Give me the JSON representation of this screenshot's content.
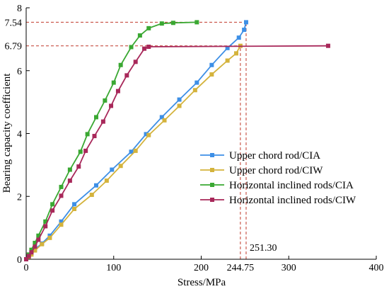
{
  "chart_data": {
    "type": "line",
    "xlabel": "Stress/MPa",
    "ylabel": "Bearing capacity coefficient",
    "xlim": [
      0,
      400
    ],
    "ylim": [
      0,
      8
    ],
    "x_ticks": [
      0,
      100,
      200,
      300,
      400
    ],
    "y_ticks": [
      0,
      2,
      4,
      6,
      8
    ],
    "x_tick_labels": [
      "0",
      "100",
      "200",
      "300",
      "400"
    ],
    "y_tick_labels": [
      "0",
      "2",
      "4",
      "6",
      "8"
    ],
    "legend_position": "right",
    "series": [
      {
        "name": "Upper chord rod/CIA",
        "color": "#3d8fe6",
        "marker": "square",
        "points": [
          [
            0,
            0
          ],
          [
            3,
            0.1
          ],
          [
            6,
            0.2
          ],
          [
            10,
            0.32
          ],
          [
            18,
            0.5
          ],
          [
            27,
            0.75
          ],
          [
            40,
            1.2
          ],
          [
            55,
            1.75
          ],
          [
            80,
            2.35
          ],
          [
            98,
            2.85
          ],
          [
            120,
            3.42
          ],
          [
            137,
            3.98
          ],
          [
            155,
            4.52
          ],
          [
            175,
            5.08
          ],
          [
            195,
            5.62
          ],
          [
            212,
            6.18
          ],
          [
            230,
            6.72
          ],
          [
            243,
            7.05
          ],
          [
            249,
            7.3
          ],
          [
            251.3,
            7.54
          ]
        ]
      },
      {
        "name": "Upper chord rod/CIW",
        "color": "#d4b33c",
        "marker": "square",
        "points": [
          [
            0,
            0
          ],
          [
            3,
            0.08
          ],
          [
            6,
            0.15
          ],
          [
            10,
            0.28
          ],
          [
            18,
            0.48
          ],
          [
            27,
            0.68
          ],
          [
            40,
            1.1
          ],
          [
            55,
            1.6
          ],
          [
            75,
            2.05
          ],
          [
            92,
            2.5
          ],
          [
            108,
            2.97
          ],
          [
            125,
            3.45
          ],
          [
            140,
            3.95
          ],
          [
            158,
            4.42
          ],
          [
            175,
            4.88
          ],
          [
            193,
            5.38
          ],
          [
            212,
            5.88
          ],
          [
            230,
            6.32
          ],
          [
            240,
            6.55
          ],
          [
            244.75,
            6.79
          ]
        ]
      },
      {
        "name": "Horizontal inclined rods/CIA",
        "color": "#3aa832",
        "marker": "square",
        "points": [
          [
            0,
            0
          ],
          [
            3,
            0.15
          ],
          [
            6,
            0.3
          ],
          [
            10,
            0.52
          ],
          [
            14,
            0.75
          ],
          [
            22,
            1.2
          ],
          [
            30,
            1.75
          ],
          [
            40,
            2.3
          ],
          [
            50,
            2.85
          ],
          [
            62,
            3.42
          ],
          [
            70,
            3.98
          ],
          [
            80,
            4.52
          ],
          [
            90,
            5.05
          ],
          [
            100,
            5.62
          ],
          [
            108,
            6.18
          ],
          [
            120,
            6.75
          ],
          [
            130,
            7.12
          ],
          [
            140,
            7.35
          ],
          [
            155,
            7.5
          ],
          [
            168,
            7.52
          ],
          [
            195,
            7.54
          ]
        ]
      },
      {
        "name": "Horizontal inclined rods/CIW",
        "color": "#a8285a",
        "marker": "square",
        "points": [
          [
            0,
            0
          ],
          [
            3,
            0.1
          ],
          [
            6,
            0.22
          ],
          [
            10,
            0.4
          ],
          [
            14,
            0.62
          ],
          [
            22,
            1.05
          ],
          [
            30,
            1.55
          ],
          [
            40,
            2.02
          ],
          [
            50,
            2.5
          ],
          [
            60,
            2.95
          ],
          [
            68,
            3.45
          ],
          [
            78,
            3.92
          ],
          [
            88,
            4.38
          ],
          [
            97,
            4.88
          ],
          [
            105,
            5.35
          ],
          [
            115,
            5.85
          ],
          [
            125,
            6.28
          ],
          [
            135,
            6.7
          ],
          [
            140,
            6.76
          ],
          [
            345,
            6.79
          ]
        ]
      }
    ],
    "reference_lines": {
      "horizontal": [
        {
          "value": 7.54,
          "label": "7.54",
          "color": "#c0392b"
        },
        {
          "value": 6.79,
          "label": "6.79",
          "color": "#c0392b"
        }
      ],
      "vertical": [
        {
          "value": 244.75,
          "label": "244.75",
          "color": "#c0392b"
        },
        {
          "value": 251.3,
          "label": "251.30",
          "color": "#c0392b"
        }
      ]
    }
  }
}
